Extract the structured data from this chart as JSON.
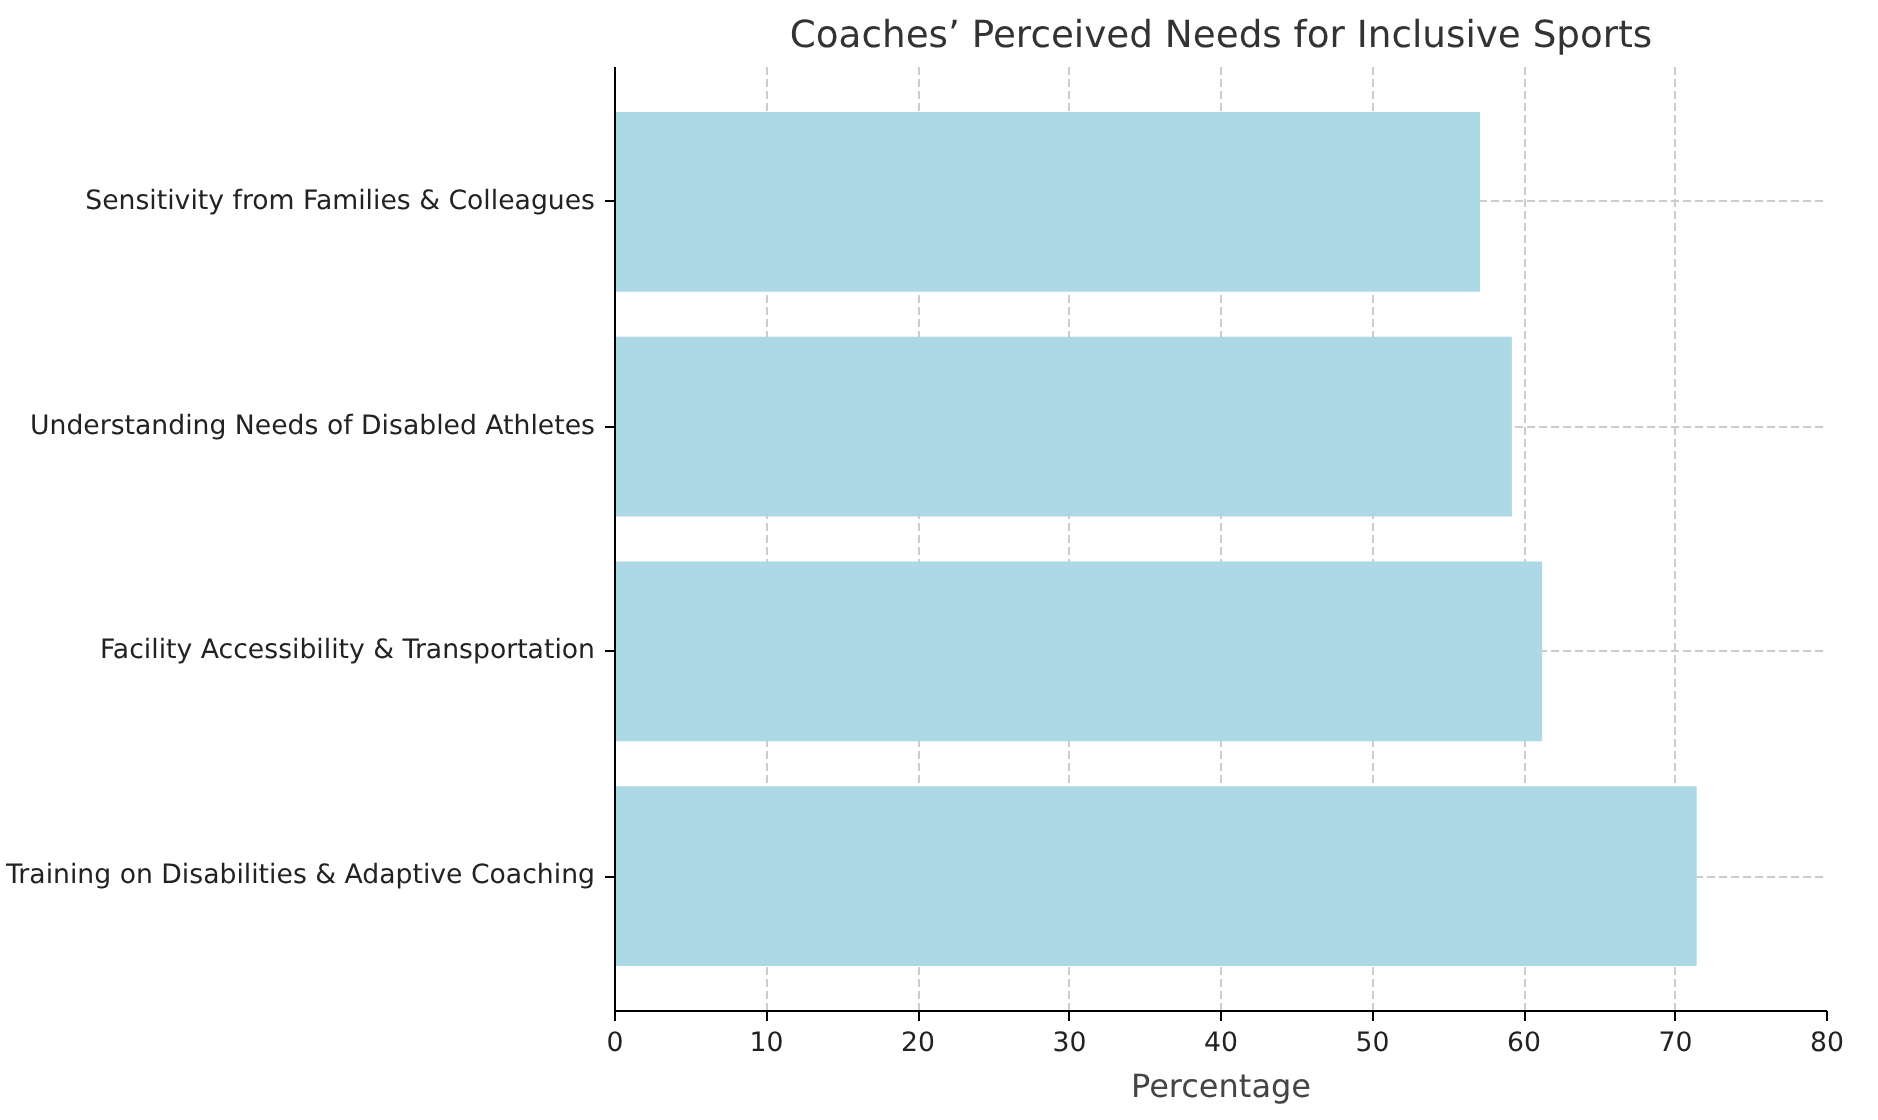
{
  "chart_data": {
    "type": "bar",
    "orientation": "horizontal",
    "title": "Coaches’ Perceived Needs for Inclusive Sports",
    "xlabel": "Percentage",
    "categories": [
      "Sensitivity from Families & Colleagues",
      "Understanding Needs of Disabled Athletes",
      "Facility Accessibility & Transportation",
      "Training on Disabilities & Adaptive Coaching"
    ],
    "values": [
      57.1,
      59.2,
      61.2,
      71.4
    ],
    "color": "#add8e6",
    "xlim": [
      0,
      80
    ],
    "xticks": [
      0,
      10,
      20,
      30,
      40,
      50,
      60,
      70,
      80
    ],
    "grid": true
  }
}
